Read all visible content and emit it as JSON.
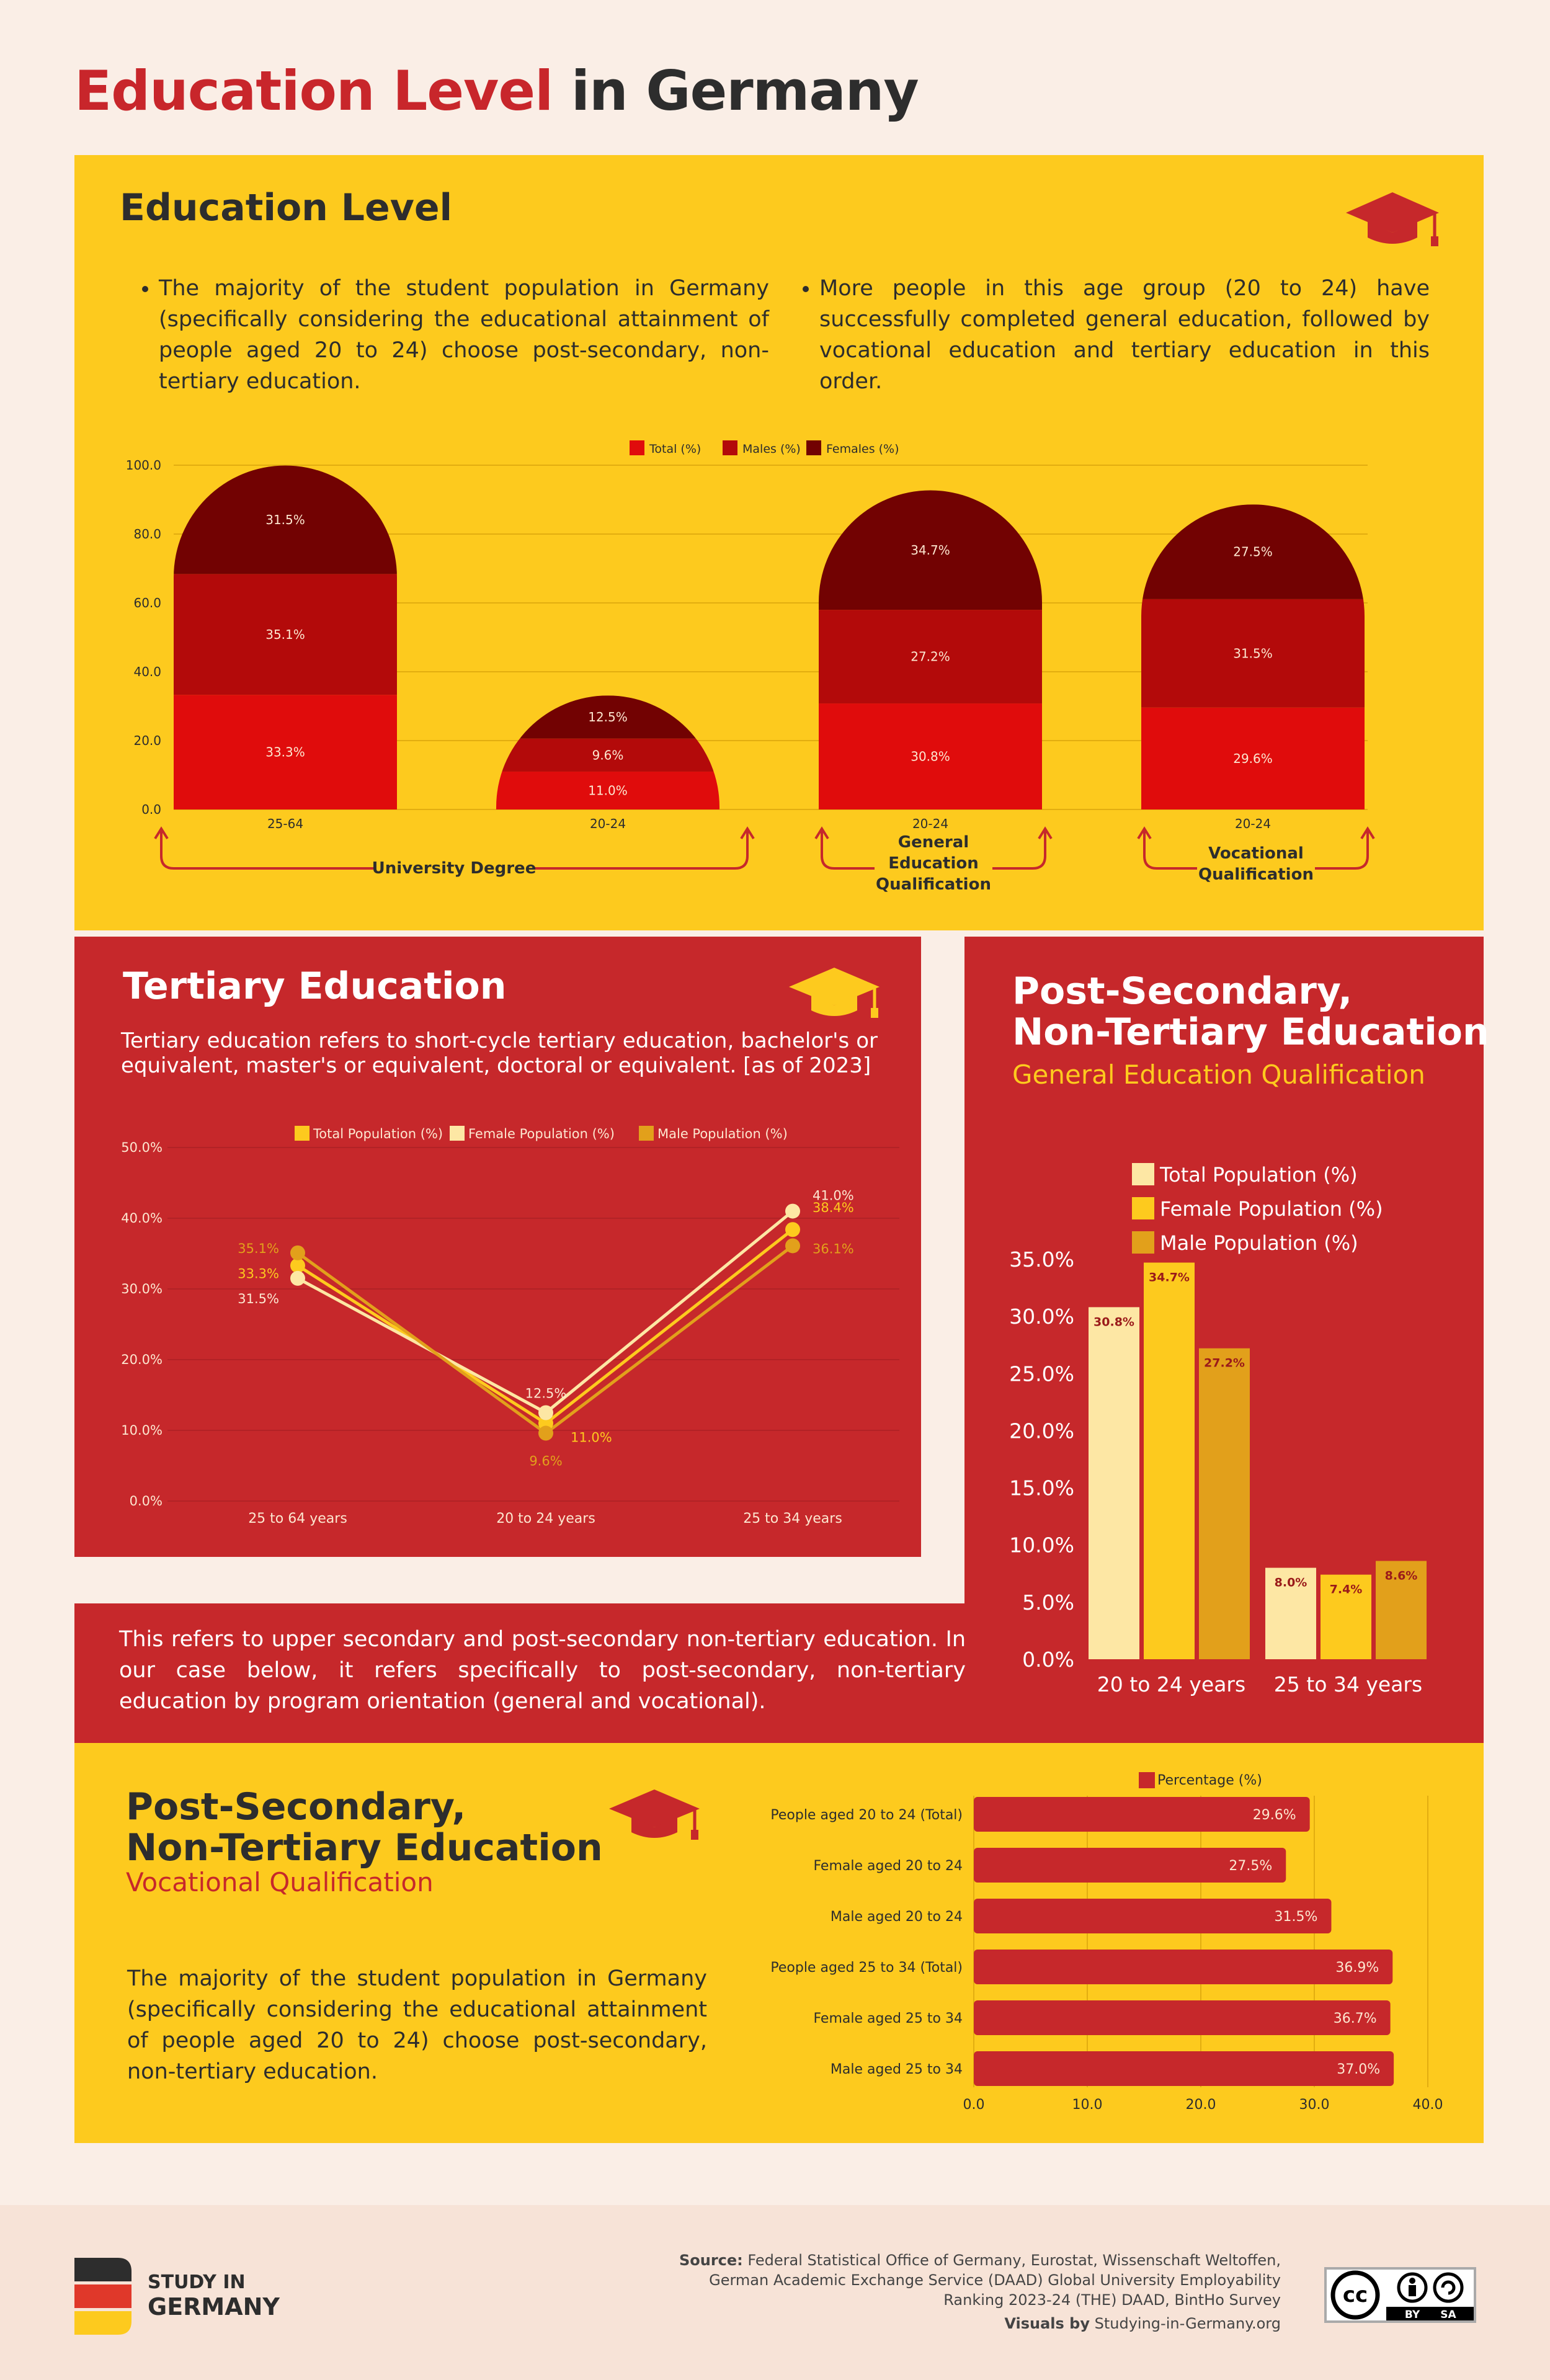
{
  "title": {
    "part1": "Education Level",
    "part2": "in Germany"
  },
  "section1": {
    "heading": "Education Level",
    "bullet1": "The majority of the student population in Germany (specifically considering the educational attainment of people aged 20 to 24) choose post-secondary, non-tertiary education.",
    "bullet2": "More people in this age group (20 to 24) have successfully completed general education, followed by vocational education and tertiary education in this order.",
    "icon": "graduation-cap-icon"
  },
  "chart_data": [
    {
      "type": "bar",
      "stacked": true,
      "categories": [
        "25-64",
        "20-24",
        "20-24",
        "20-24"
      ],
      "series": [
        {
          "name": "Total (%)",
          "values": [
            33.3,
            11.0,
            30.8,
            29.6
          ],
          "color": "#e00c0c"
        },
        {
          "name": "Males (%)",
          "values": [
            35.1,
            9.6,
            27.2,
            31.5
          ],
          "color": "#b30a0a"
        },
        {
          "name": "Females (%)",
          "values": [
            31.5,
            12.5,
            34.7,
            27.5
          ],
          "color": "#720202"
        }
      ],
      "ylim": [
        0,
        100
      ],
      "yticks": [
        "0.0",
        "20.0",
        "40.0",
        "60.0",
        "80.0",
        "100.0"
      ],
      "groups": [
        "University Degree",
        "General Education Qualification",
        "Vocational Qualification"
      ],
      "legend": "top"
    },
    {
      "type": "line",
      "title": "Tertiary Education",
      "categories": [
        "25 to 64 years",
        "20 to 24 years",
        "25 to 34 years"
      ],
      "series": [
        {
          "name": "Total Population (%)",
          "values": [
            33.3,
            11.0,
            38.4
          ],
          "color": "#fdca1e"
        },
        {
          "name": "Female Population (%)",
          "values": [
            31.5,
            12.5,
            41.0
          ],
          "color": "#fde7a4"
        },
        {
          "name": "Male Population (%)",
          "values": [
            35.1,
            9.6,
            36.1
          ],
          "color": "#e2a01b"
        }
      ],
      "ylim": [
        0,
        50
      ],
      "yticks": [
        "0.0%",
        "10.0%",
        "20.0%",
        "30.0%",
        "40.0%",
        "50.0%"
      ],
      "legend": "top"
    },
    {
      "type": "bar",
      "title": "Post-Secondary, Non-Tertiary Education",
      "subtitle": "General Education Qualification",
      "categories": [
        "20 to 24 years",
        "25 to 34 years"
      ],
      "series": [
        {
          "name": "Total Population (%)",
          "values": [
            30.8,
            8.0
          ],
          "color": "#fde7a4"
        },
        {
          "name": "Female Population (%)",
          "values": [
            34.7,
            7.4
          ],
          "color": "#fdca1e"
        },
        {
          "name": "Male Population (%)",
          "values": [
            27.2,
            8.6
          ],
          "color": "#e2a01b"
        }
      ],
      "ylim": [
        0,
        35
      ],
      "yticks": [
        "0.0%",
        "5.0%",
        "10.0%",
        "15.0%",
        "20.0%",
        "25.0%",
        "30.0%",
        "35.0%"
      ],
      "legend": "top"
    },
    {
      "type": "bar",
      "orientation": "horizontal",
      "title": "Post-Secondary, Non-Tertiary Education",
      "subtitle": "Vocational Qualification",
      "categories": [
        "People aged 20 to 24 (Total)",
        "Female aged 20 to 24",
        "Male aged 20 to 24",
        "People aged 25 to 34 (Total)",
        "Female aged 25 to 34",
        "Male aged 25 to 34"
      ],
      "series": [
        {
          "name": "Percentage (%)",
          "values": [
            29.6,
            27.5,
            31.5,
            36.9,
            36.7,
            37.0
          ],
          "color": "#c6282b"
        }
      ],
      "xlim": [
        0,
        40
      ],
      "xticks": [
        "0.0",
        "10.0",
        "20.0",
        "30.0",
        "40.0"
      ],
      "legend": "top"
    }
  ],
  "tertiary": {
    "heading": "Tertiary Education",
    "desc": "Tertiary education refers to short-cycle tertiary education, bachelor's or equivalent, master's or equivalent, doctoral or equivalent. [as of 2023]"
  },
  "postsec": {
    "heading1": "Post-Secondary,",
    "heading2": "Non-Tertiary Education",
    "sub": "General Education Qualification",
    "desc": "This refers to upper secondary and post-secondary non-tertiary education. In our case below, it refers specifically to post-secondary, non-tertiary education by program orientation (general and vocational)."
  },
  "vocational": {
    "heading1": "Post-Secondary,",
    "heading2": "Non-Tertiary Education",
    "sub": "Vocational Qualification",
    "desc": "The majority of the student population in Germany (specifically considering the educational attainment of people aged 20 to 24) choose post-secondary, non-tertiary education."
  },
  "footer": {
    "logo_line1": "STUDY IN",
    "logo_line2": "GERMANY",
    "source_label": "Source:",
    "source_text1": "Federal Statistical Office of Germany, Eurostat, Wissenschaft Weltoffen,",
    "source_text2": "German Academic Exchange Service (DAAD) Global University Employability",
    "source_text3": "Ranking 2023-24 (THE) DAAD, BintHo Survey",
    "visuals_label": "Visuals by",
    "visuals_text": "Studying-in-Germany.org",
    "cc_label": "cc",
    "by_label": "BY",
    "sa_label": "SA"
  }
}
